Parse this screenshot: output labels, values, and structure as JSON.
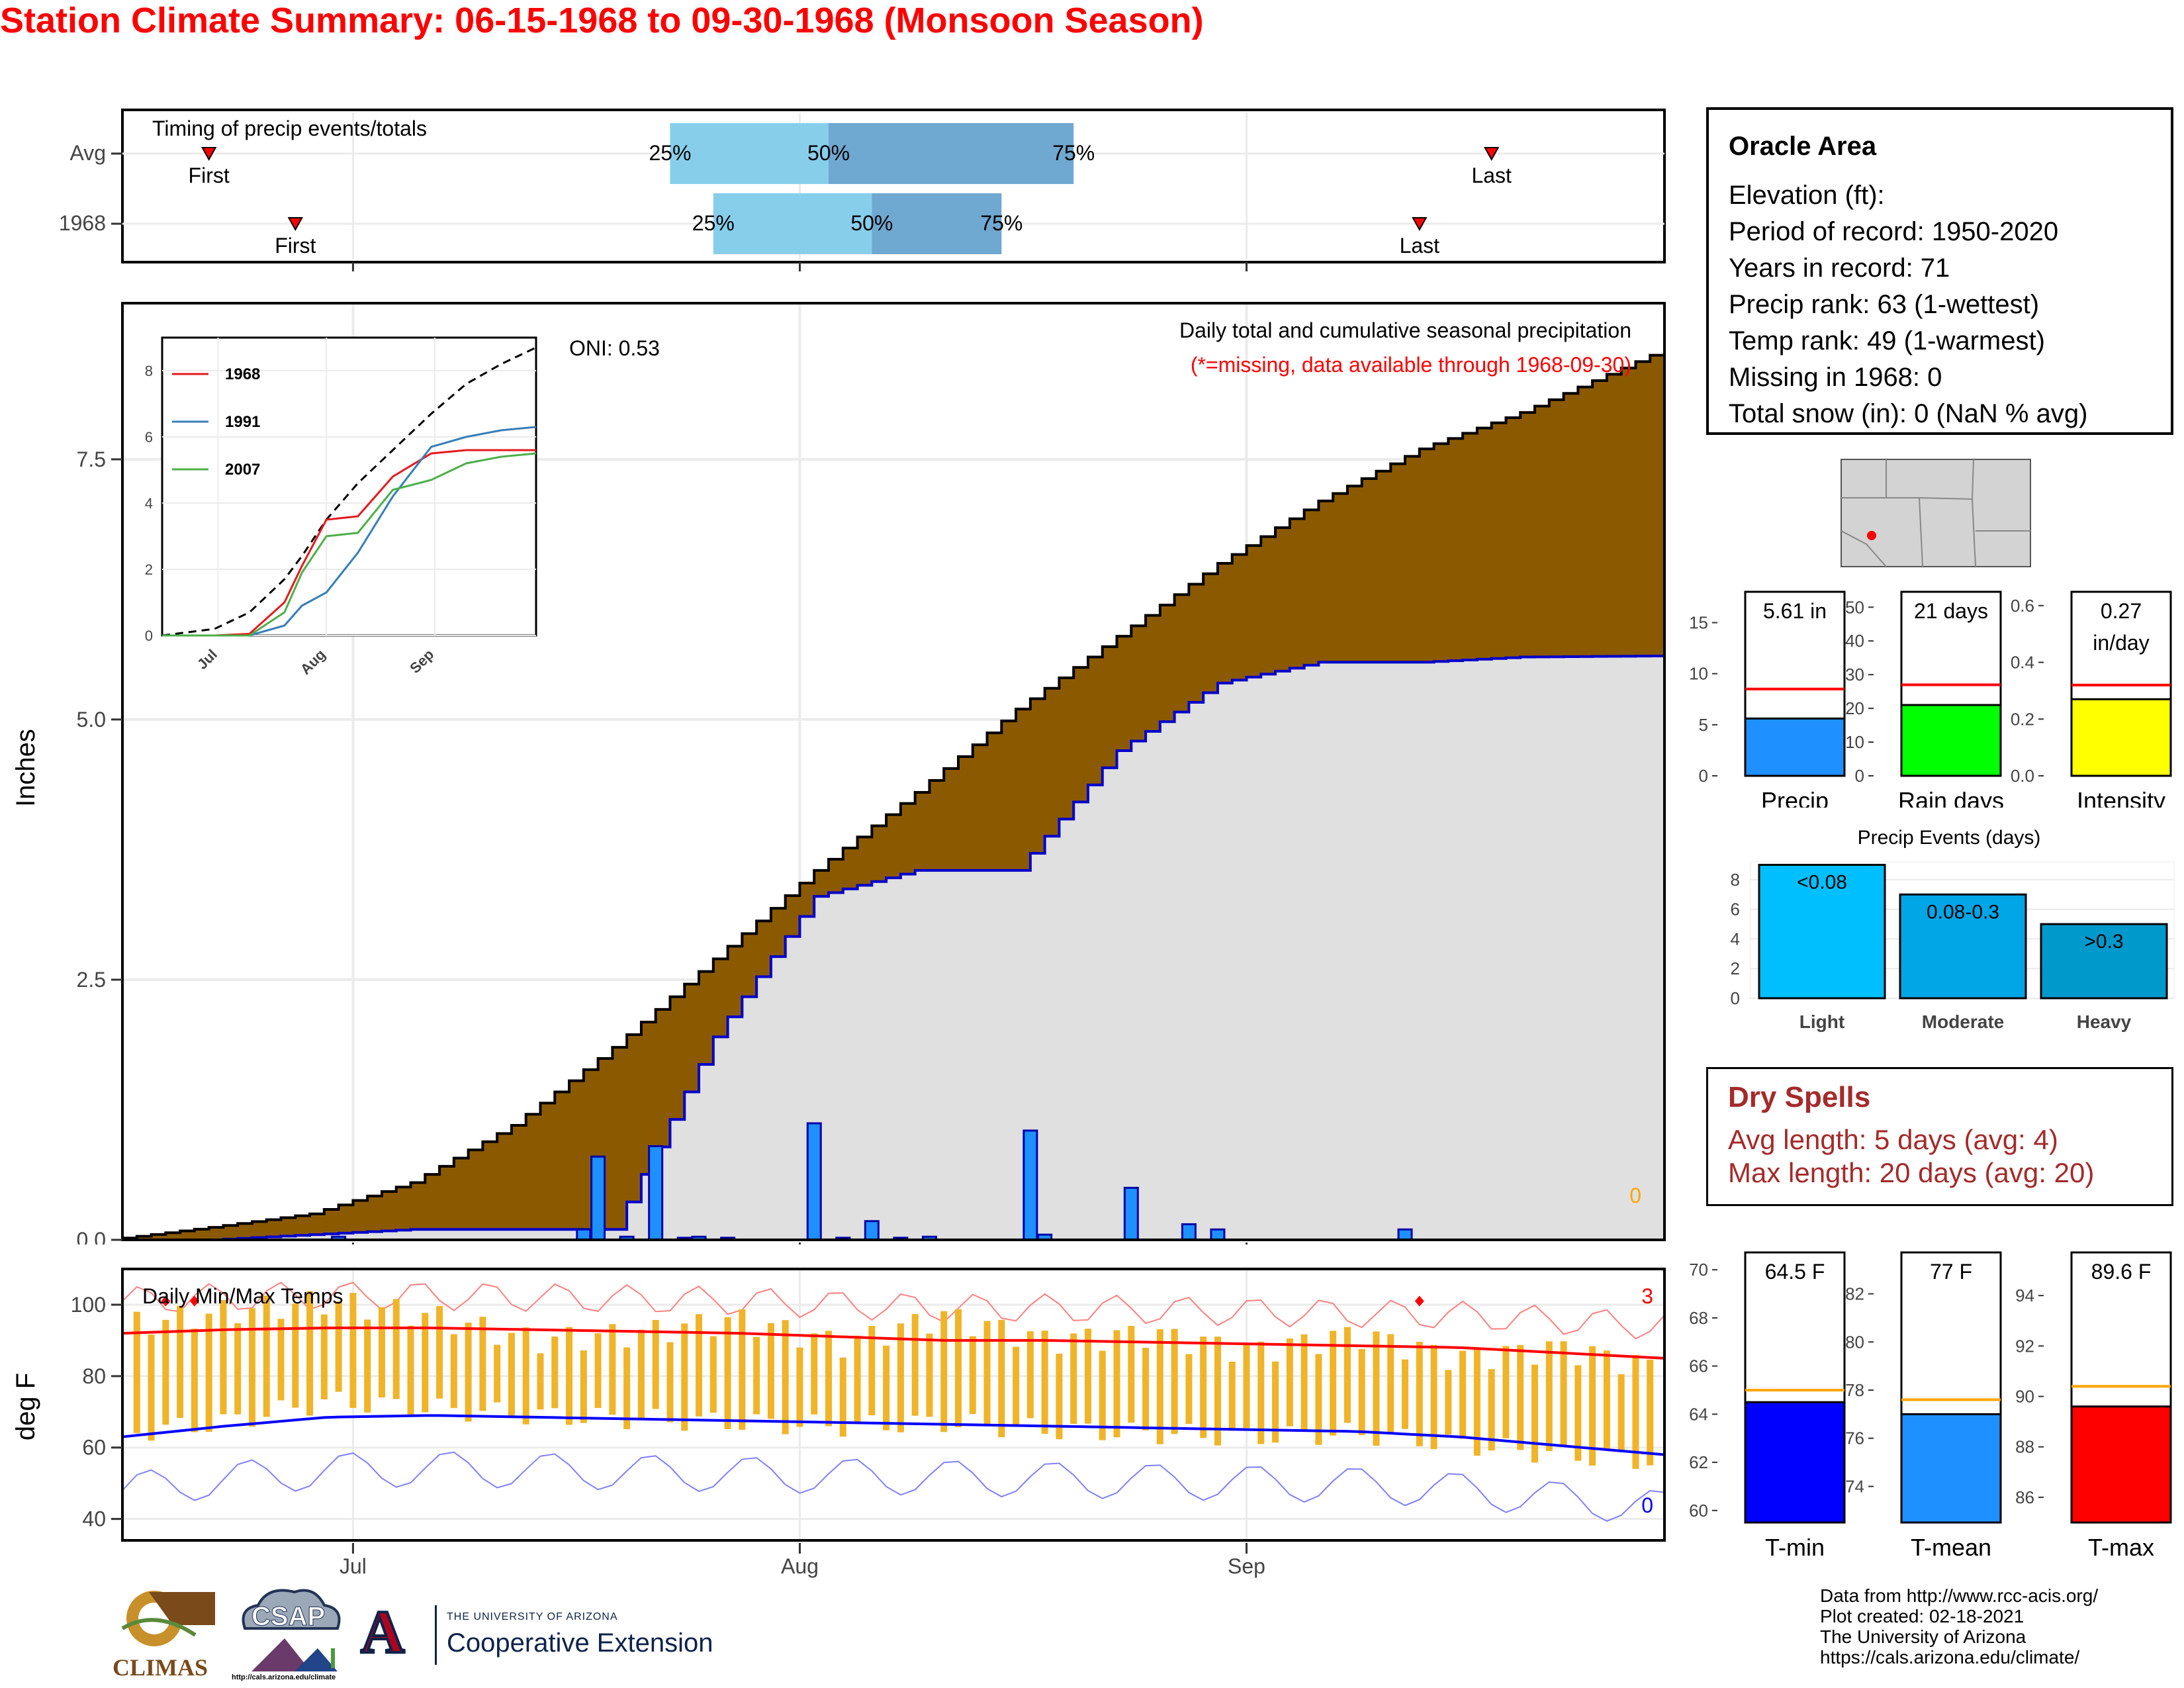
{
  "title": "Station Climate Summary: 06-15-1968 to 09-30-1968 (Monsoon Season)",
  "colors": {
    "title": "#ff0000",
    "cum_fill": "#8b5a00",
    "avg_fill": "#e0e0e0",
    "daily_bar": "#1e90ff",
    "line_avg": "#0000cc",
    "tmax": "#ff0000",
    "tmin": "#0000ff",
    "temp_bar": "#f0b429",
    "light_blue": "#87ceeb",
    "mid_blue": "#6fa8d0"
  },
  "timing": {
    "title": "Timing of precip events/totals",
    "rows": [
      {
        "label": "Avg",
        "first_label": "First",
        "last_label": "Last",
        "q25": "25%",
        "q50": "50%",
        "q75": "75%",
        "first": "06-21",
        "p25": "07-23",
        "p50": "08-03",
        "p75": "08-20",
        "last": "09-18"
      },
      {
        "label": "1968",
        "first_label": "First",
        "last_label": "Last",
        "q25": "25%",
        "q50": "50%",
        "q75": "75%",
        "first": "06-27",
        "p25": "07-26",
        "p50": "08-06",
        "p75": "08-15",
        "last": "09-13"
      }
    ]
  },
  "precip_chart": {
    "ylabel": "Inches",
    "title": "Daily total and cumulative seasonal precipitation",
    "subtitle": "(*=missing, data available through 1968-09-30)",
    "oni": "ONI: 0.53",
    "missing_count": "0",
    "yticks": [
      "0.0",
      "2.5",
      "5.0",
      "7.5"
    ],
    "xticks": [
      "Jul",
      "Aug",
      "Sep"
    ],
    "ylim": [
      0,
      9.0
    ]
  },
  "chart_data": [
    {
      "type": "area",
      "name": "cumulative_precip",
      "x_dates": [
        "06-15",
        "06-22",
        "06-29",
        "07-06",
        "07-13",
        "07-20",
        "07-27",
        "08-03",
        "08-10",
        "08-17",
        "08-24",
        "08-31",
        "09-07",
        "09-14",
        "09-21",
        "09-30"
      ],
      "series": [
        {
          "name": "Avg cumulative",
          "values": [
            0.0,
            0.12,
            0.25,
            0.55,
            1.1,
            1.85,
            2.7,
            3.55,
            4.3,
            5.1,
            5.8,
            6.5,
            7.1,
            7.6,
            7.95,
            8.5
          ]
        },
        {
          "name": "1968 cumulative",
          "values": [
            0.0,
            0.0,
            0.05,
            0.1,
            0.1,
            0.1,
            1.95,
            3.3,
            3.55,
            3.55,
            4.7,
            5.35,
            5.55,
            5.55,
            5.6,
            5.61
          ]
        }
      ],
      "daily_bars": [
        {
          "date": "06-30",
          "value": 0.03
        },
        {
          "date": "07-17",
          "value": 0.1
        },
        {
          "date": "07-18",
          "value": 0.8
        },
        {
          "date": "07-20",
          "value": 0.03
        },
        {
          "date": "07-22",
          "value": 0.9
        },
        {
          "date": "07-24",
          "value": 0.02
        },
        {
          "date": "07-25",
          "value": 0.03
        },
        {
          "date": "07-27",
          "value": 0.02
        },
        {
          "date": "08-02",
          "value": 1.12
        },
        {
          "date": "08-04",
          "value": 0.02
        },
        {
          "date": "08-06",
          "value": 0.18
        },
        {
          "date": "08-08",
          "value": 0.02
        },
        {
          "date": "08-10",
          "value": 0.03
        },
        {
          "date": "08-17",
          "value": 1.05
        },
        {
          "date": "08-18",
          "value": 0.05
        },
        {
          "date": "08-24",
          "value": 0.5
        },
        {
          "date": "08-28",
          "value": 0.15
        },
        {
          "date": "08-30",
          "value": 0.1
        },
        {
          "date": "09-12",
          "value": 0.1
        }
      ]
    },
    {
      "type": "line",
      "name": "inset_cumulative",
      "yticks": [
        "0",
        "2",
        "4",
        "6",
        "8"
      ],
      "xticks": [
        "Jul",
        "Aug",
        "Sep"
      ],
      "legend": [
        "1968",
        "1991",
        "2007"
      ],
      "x_dates": [
        "06-15",
        "06-30",
        "07-10",
        "07-20",
        "07-25",
        "08-01",
        "08-10",
        "08-20",
        "08-31",
        "09-10",
        "09-20",
        "09-30"
      ],
      "series": [
        {
          "name": "Avg",
          "values": [
            0,
            0.2,
            0.7,
            1.7,
            2.4,
            3.5,
            4.6,
            5.6,
            6.7,
            7.6,
            8.2,
            8.7
          ]
        },
        {
          "name": "1968",
          "values": [
            0,
            0,
            0.05,
            1.0,
            2.1,
            3.5,
            3.6,
            4.8,
            5.5,
            5.6,
            5.6,
            5.6
          ]
        },
        {
          "name": "1991",
          "values": [
            0,
            0,
            0,
            0.3,
            0.9,
            1.3,
            2.5,
            4.2,
            5.7,
            6.0,
            6.2,
            6.3
          ]
        },
        {
          "name": "2007",
          "values": [
            0,
            0,
            0,
            0.7,
            1.9,
            3.0,
            3.1,
            4.4,
            4.7,
            5.2,
            5.4,
            5.5
          ]
        }
      ]
    },
    {
      "type": "bar",
      "name": "temps",
      "title": "Daily Min/Max Temps",
      "ylabel": "deg F",
      "yticks": [
        "40",
        "60",
        "80",
        "100"
      ],
      "xticks": [
        "Jul",
        "Aug",
        "Sep"
      ],
      "record_high_count": "3",
      "record_low_count": "0",
      "ylim": [
        34,
        110
      ],
      "avg_max": [
        92,
        93,
        93.5,
        93.5,
        93,
        92.5,
        92,
        91,
        90,
        90,
        89.5,
        89,
        88.5,
        88,
        86.5,
        85
      ],
      "avg_min": [
        63,
        66,
        68.5,
        69,
        68.5,
        68,
        67.5,
        67,
        66.5,
        66,
        65.5,
        65,
        64.5,
        63,
        60.5,
        58
      ],
      "tmax_sample": [
        97,
        101,
        104,
        100,
        93,
        95,
        99,
        92,
        100,
        93,
        95,
        90,
        95,
        88,
        91,
        85
      ],
      "tmin_sample": [
        63,
        66,
        72,
        70,
        68,
        67,
        66,
        65,
        66,
        64,
        63,
        62,
        63,
        60,
        57,
        55
      ]
    },
    {
      "type": "bar",
      "name": "season_totals",
      "categories": [
        "Precip",
        "Rain days",
        "Intensity"
      ],
      "labels": [
        "5.61 in",
        "21 days",
        "0.27 in/day"
      ],
      "values": [
        5.61,
        21,
        0.27
      ],
      "averages": [
        8.5,
        27,
        0.32
      ],
      "yticks": [
        [
          "0",
          "5",
          "10",
          "15"
        ],
        [
          "0",
          "10",
          "20",
          "30",
          "40",
          "50"
        ],
        [
          "0.0",
          "0.2",
          "0.4",
          "0.6"
        ]
      ]
    },
    {
      "type": "bar",
      "name": "precip_events",
      "title": "Precip Events (days)",
      "categories": [
        "Light",
        "Moderate",
        "Heavy"
      ],
      "bar_labels": [
        "<0.08",
        "0.08-0.3",
        ">0.3"
      ],
      "values": [
        9,
        7,
        5
      ],
      "yticks": [
        "0",
        "2",
        "4",
        "6",
        "8"
      ]
    },
    {
      "type": "bar",
      "name": "temp_means",
      "categories": [
        "T-min",
        "T-mean",
        "T-max"
      ],
      "labels": [
        "64.5 F",
        "77 F",
        "89.6 F"
      ],
      "values": [
        64.5,
        77,
        89.6
      ],
      "averages": [
        65,
        77.6,
        90.4
      ],
      "yticks": [
        [
          "60",
          "62",
          "64",
          "66",
          "68",
          "70"
        ],
        [
          "74",
          "76",
          "78",
          "80",
          "82"
        ],
        [
          "86",
          "88",
          "90",
          "92",
          "94"
        ]
      ]
    }
  ],
  "station": {
    "name": "Oracle Area",
    "lines": [
      "Elevation (ft):",
      "Period of record: 1950-2020",
      "Years in record: 71",
      "Precip rank: 63 (1-wettest)",
      "Temp rank: 49 (1-warmest)",
      "Missing in 1968: 0",
      "Total snow (in): 0 (NaN % avg)"
    ]
  },
  "dry_spells": {
    "title": "Dry Spells",
    "avg": "Avg length: 5 days (avg: 4)",
    "max": "Max length: 20 days (avg: 20)"
  },
  "credits": [
    "Data from http://www.rcc-acis.org/",
    "Plot created: 02-18-2021",
    "The University of Arizona",
    "https://cals.arizona.edu/climate/"
  ],
  "logos": {
    "climas": "CLIMAS",
    "csap": "CSAP",
    "csap_url": "http://cals.arizona.edu/climate",
    "ua_line1": "THE UNIVERSITY OF ARIZONA",
    "ua_line2": "Cooperative Extension",
    "ua_mark": "A"
  }
}
